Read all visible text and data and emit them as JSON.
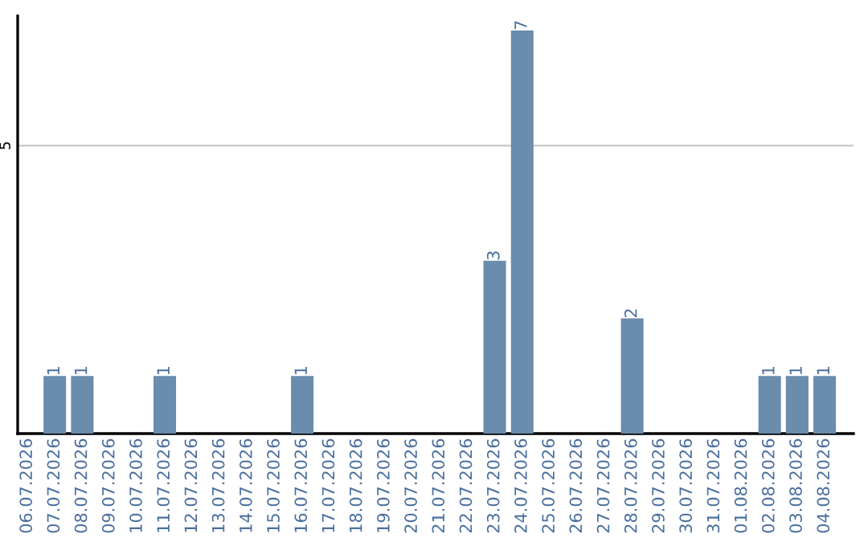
{
  "chart_data": {
    "type": "bar",
    "categories": [
      "06.07.2026",
      "07.07.2026",
      "08.07.2026",
      "09.07.2026",
      "10.07.2026",
      "11.07.2026",
      "12.07.2026",
      "13.07.2026",
      "14.07.2026",
      "15.07.2026",
      "16.07.2026",
      "17.07.2026",
      "18.07.2026",
      "19.07.2026",
      "20.07.2026",
      "21.07.2026",
      "22.07.2026",
      "23.07.2026",
      "24.07.2026",
      "25.07.2026",
      "26.07.2026",
      "27.07.2026",
      "28.07.2026",
      "29.07.2026",
      "30.07.2026",
      "31.07.2026",
      "01.08.2026",
      "02.08.2026",
      "03.08.2026",
      "04.08.2026"
    ],
    "values": [
      0,
      1,
      1,
      0,
      0,
      1,
      0,
      0,
      0,
      0,
      1,
      0,
      0,
      0,
      0,
      0,
      0,
      3,
      7,
      0,
      0,
      0,
      2,
      0,
      0,
      0,
      0,
      1,
      1,
      1
    ],
    "value_labels": [
      null,
      "1",
      "1",
      null,
      null,
      "1",
      null,
      null,
      null,
      null,
      "1",
      null,
      null,
      null,
      null,
      null,
      null,
      "3",
      "7",
      null,
      null,
      null,
      "2",
      null,
      null,
      null,
      null,
      "1",
      "1",
      "1"
    ],
    "color": "#6a8cad",
    "ylim": [
      0,
      7.25
    ],
    "yticks": [
      5
    ],
    "grid": "y",
    "legend": false
  }
}
